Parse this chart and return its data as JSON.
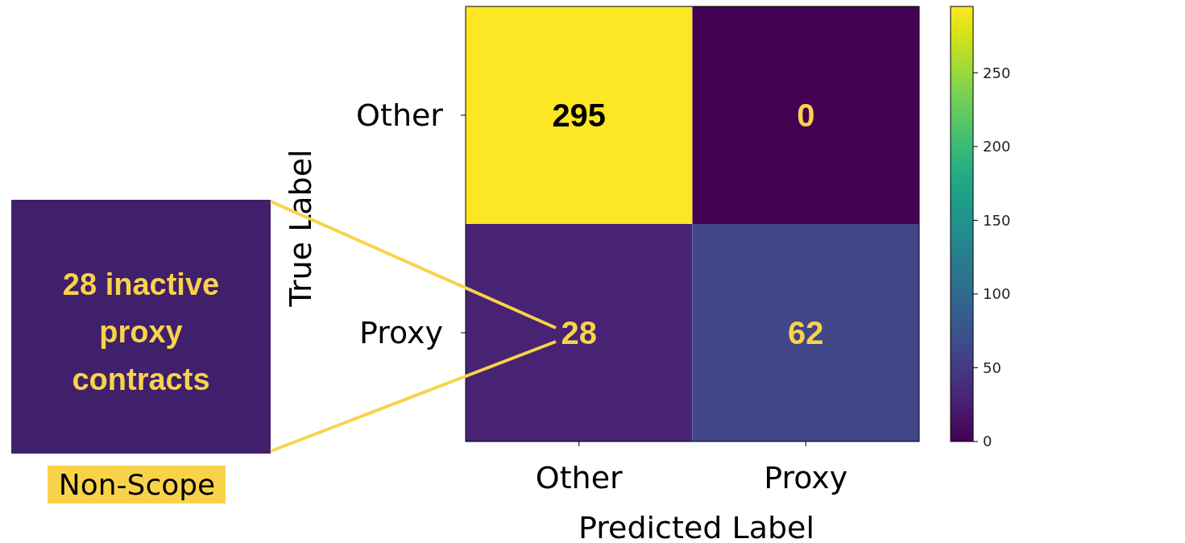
{
  "chart_data": {
    "type": "heatmap",
    "xlabel": "Predicted Label",
    "ylabel": "True Label",
    "categories": [
      "Other",
      "Proxy"
    ],
    "y_categories": [
      "Other",
      "Proxy"
    ],
    "cells": [
      [
        295,
        0
      ],
      [
        28,
        62
      ]
    ],
    "clim": [
      0,
      295
    ],
    "cticks": [
      0,
      50,
      100,
      150,
      200,
      250
    ],
    "data_labels": true,
    "annotations": [
      "28 inactive proxy contracts",
      "Non-Scope"
    ]
  }
}
